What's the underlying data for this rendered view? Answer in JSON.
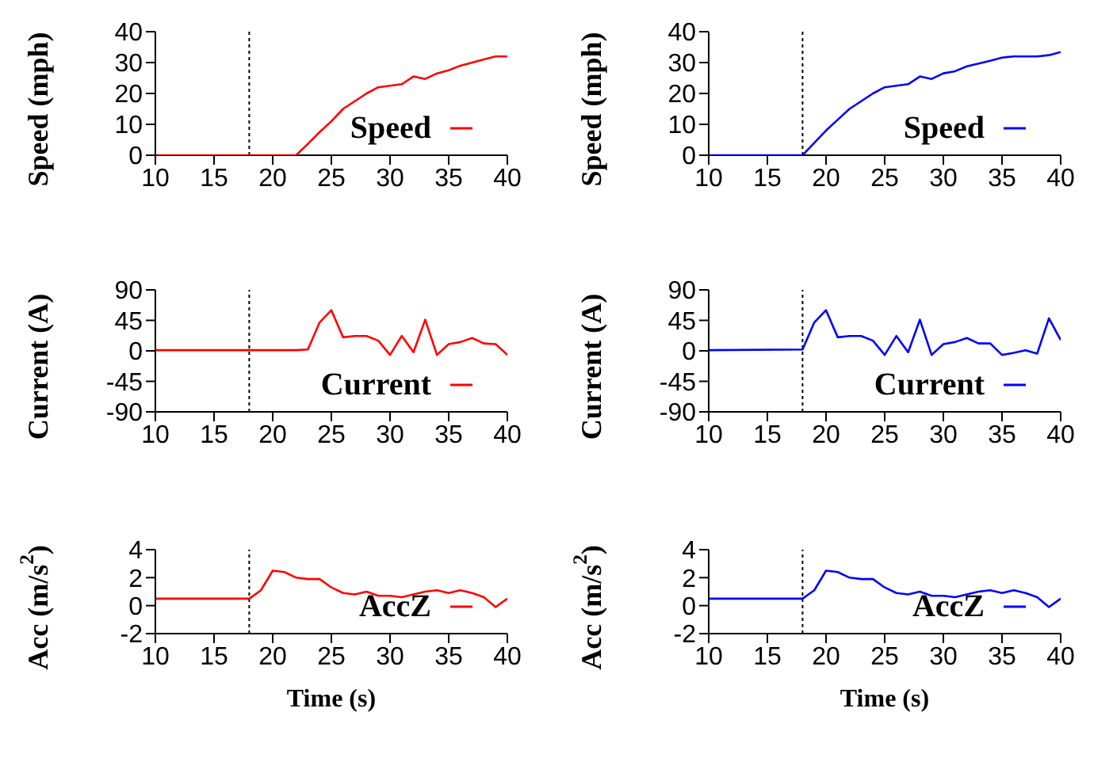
{
  "chart_data": [
    {
      "type": "line",
      "ylabel": "Speed (mph)",
      "x": [
        10,
        18,
        19,
        20,
        21,
        22,
        23,
        24,
        25,
        26,
        27,
        28,
        29,
        30,
        31,
        32,
        33,
        34,
        35,
        36,
        37,
        38,
        39,
        40
      ],
      "series": [
        {
          "name": "Speed",
          "color": "#ff0000",
          "values": [
            0,
            0,
            0,
            0,
            0,
            0,
            3.7,
            7.5,
            11,
            15,
            17.5,
            20,
            22,
            22.5,
            23,
            25.5,
            24.7,
            26.5,
            27.5,
            29,
            30,
            31,
            32,
            32
          ]
        }
      ],
      "xlim": [
        10,
        40
      ],
      "xticks": [
        10,
        15,
        20,
        25,
        30,
        35,
        40
      ],
      "ylim": [
        0,
        40
      ],
      "yticks": [
        0,
        10,
        20,
        30,
        40
      ],
      "legend": "bottom right",
      "ref_lines": [
        {
          "axis": "x",
          "value": 18,
          "color": "#000000",
          "line_style": "dotted"
        }
      ]
    },
    {
      "type": "line",
      "ylabel": "Speed (mph)",
      "x": [
        10,
        18,
        19,
        20,
        21,
        22,
        23,
        24,
        25,
        26,
        27,
        28,
        29,
        30,
        31,
        32,
        33,
        34,
        35,
        36,
        37,
        38,
        39,
        40
      ],
      "series": [
        {
          "name": "Speed",
          "color": "#0000ff",
          "values": [
            0,
            0,
            4,
            8,
            11.5,
            15,
            17.5,
            20,
            22,
            22.5,
            23,
            25.5,
            24.7,
            26.5,
            27.2,
            28.8,
            29.7,
            30.6,
            31.6,
            32,
            32,
            32,
            32.4,
            33.4
          ]
        }
      ],
      "xlim": [
        10,
        40
      ],
      "xticks": [
        10,
        15,
        20,
        25,
        30,
        35,
        40
      ],
      "ylim": [
        0,
        40
      ],
      "yticks": [
        0,
        10,
        20,
        30,
        40
      ],
      "legend": "bottom right",
      "ref_lines": [
        {
          "axis": "x",
          "value": 18,
          "color": "#000000",
          "line_style": "dotted"
        }
      ]
    },
    {
      "type": "line",
      "ylabel": "Current (A)",
      "x": [
        10,
        18,
        19,
        20,
        21,
        22,
        23,
        24,
        25,
        26,
        27,
        28,
        29,
        30,
        31,
        32,
        33,
        34,
        35,
        36,
        37,
        38,
        39,
        40
      ],
      "series": [
        {
          "name": "Current",
          "color": "#ff0000",
          "values": [
            1,
            1,
            1,
            1,
            1,
            1,
            2,
            42,
            60,
            20,
            22,
            22,
            15,
            -6,
            22,
            -2,
            46,
            -6,
            10,
            13,
            19,
            11,
            10,
            -6
          ]
        }
      ],
      "xlim": [
        10,
        40
      ],
      "xticks": [
        10,
        15,
        20,
        25,
        30,
        35,
        40
      ],
      "ylim": [
        -90,
        90
      ],
      "yticks": [
        -90,
        -45,
        0,
        45,
        90
      ],
      "legend": "bottom right",
      "ref_lines": [
        {
          "axis": "x",
          "value": 18,
          "color": "#000000",
          "line_style": "dotted"
        }
      ]
    },
    {
      "type": "line",
      "ylabel": "Current (A)",
      "x": [
        10,
        18,
        19,
        20,
        21,
        22,
        23,
        24,
        25,
        26,
        27,
        28,
        29,
        30,
        31,
        32,
        33,
        34,
        35,
        36,
        37,
        38,
        39,
        40
      ],
      "series": [
        {
          "name": "Current",
          "color": "#0000ff",
          "values": [
            1,
            2,
            42,
            60,
            20,
            22,
            22,
            15,
            -6,
            22,
            -2,
            46,
            -6,
            10,
            13,
            19,
            11,
            11,
            -6,
            -3,
            1,
            -4,
            48,
            16
          ]
        }
      ],
      "xlim": [
        10,
        40
      ],
      "xticks": [
        10,
        15,
        20,
        25,
        30,
        35,
        40
      ],
      "ylim": [
        -90,
        90
      ],
      "yticks": [
        -90,
        -45,
        0,
        45,
        90
      ],
      "legend": "bottom right",
      "ref_lines": [
        {
          "axis": "x",
          "value": 18,
          "color": "#000000",
          "line_style": "dotted"
        }
      ]
    },
    {
      "type": "line",
      "xlabel": "Time (s)",
      "ylabel": "Acc (m/s$^{2}$)",
      "x": [
        10,
        18,
        19,
        20,
        21,
        22,
        23,
        24,
        25,
        26,
        27,
        28,
        29,
        30,
        31,
        32,
        33,
        34,
        35,
        36,
        37,
        38,
        39,
        40
      ],
      "series": [
        {
          "name": "AccZ",
          "color": "#ff0000",
          "values": [
            0.5,
            0.5,
            1.1,
            2.5,
            2.4,
            2.0,
            1.9,
            1.9,
            1.3,
            0.9,
            0.8,
            1.0,
            0.7,
            0.7,
            0.6,
            0.8,
            1.0,
            1.1,
            0.9,
            1.1,
            0.9,
            0.6,
            -0.1,
            0.5
          ]
        }
      ],
      "xlim": [
        10,
        40
      ],
      "xticks": [
        10,
        15,
        20,
        25,
        30,
        35,
        40
      ],
      "ylim": [
        -2,
        4
      ],
      "yticks": [
        -2,
        0,
        2,
        4
      ],
      "legend": "bottom right",
      "ref_lines": [
        {
          "axis": "x",
          "value": 18,
          "color": "#000000",
          "line_style": "dotted"
        }
      ]
    },
    {
      "type": "line",
      "xlabel": "Time (s)",
      "ylabel": "Acc (m/s$^{2}$)",
      "x": [
        10,
        18,
        19,
        20,
        21,
        22,
        23,
        24,
        25,
        26,
        27,
        28,
        29,
        30,
        31,
        32,
        33,
        34,
        35,
        36,
        37,
        38,
        39,
        40
      ],
      "series": [
        {
          "name": "AccZ",
          "color": "#0000ff",
          "values": [
            0.5,
            0.5,
            1.1,
            2.5,
            2.4,
            2.0,
            1.9,
            1.9,
            1.3,
            0.9,
            0.8,
            1.0,
            0.7,
            0.7,
            0.6,
            0.8,
            1.0,
            1.1,
            0.9,
            1.1,
            0.9,
            0.6,
            -0.1,
            0.5
          ]
        }
      ],
      "xlim": [
        10,
        40
      ],
      "xticks": [
        10,
        15,
        20,
        25,
        30,
        35,
        40
      ],
      "ylim": [
        -2,
        4
      ],
      "yticks": [
        -2,
        0,
        2,
        4
      ],
      "legend": "bottom right",
      "ref_lines": [
        {
          "axis": "x",
          "value": 18,
          "color": "#000000",
          "line_style": "dotted"
        }
      ]
    }
  ]
}
